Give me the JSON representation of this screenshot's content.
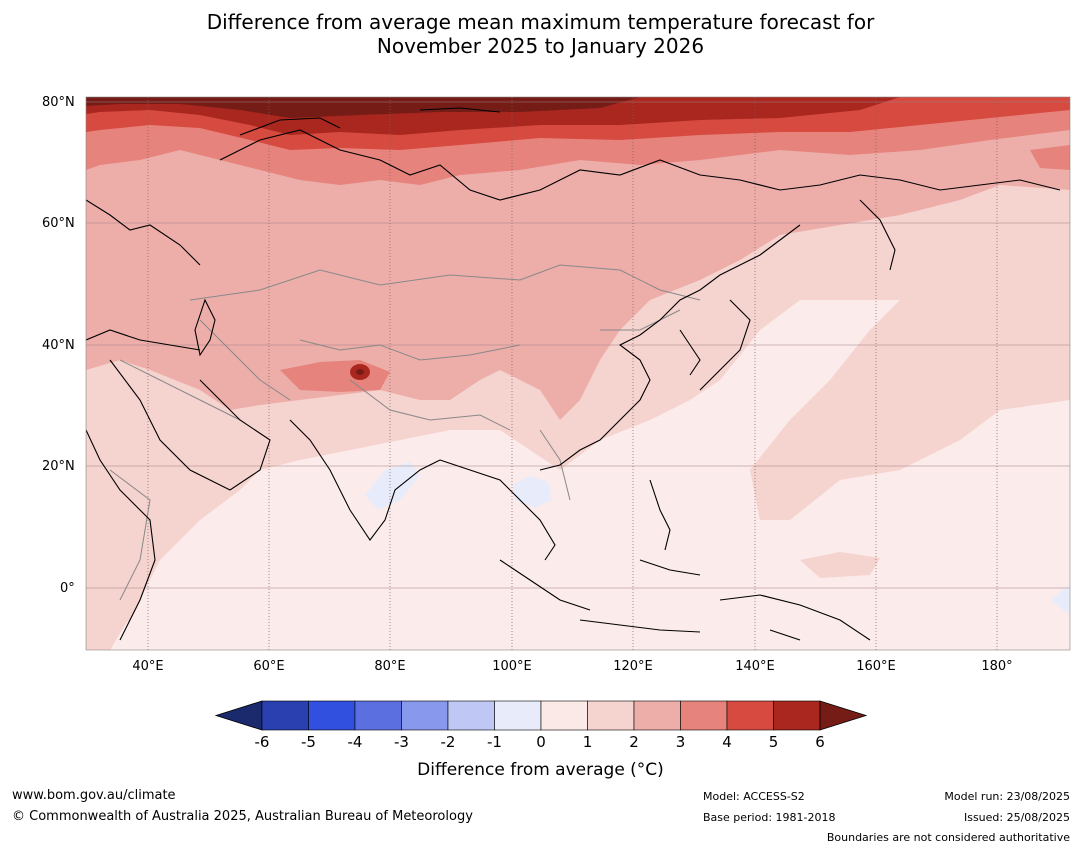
{
  "title": {
    "line1": "Difference from average mean maximum temperature forecast for",
    "line2": "November 2025 to January 2026"
  },
  "map": {
    "lat_labels": [
      "80°N",
      "60°N",
      "40°N",
      "20°N",
      "0°"
    ],
    "lon_labels": [
      "40°E",
      "60°E",
      "80°E",
      "100°E",
      "120°E",
      "140°E",
      "160°E",
      "180°"
    ],
    "ocean_color": "#fbebea",
    "coast_color": "#000000",
    "border_color": "#888888"
  },
  "colorbar": {
    "ticks": [
      "-6",
      "-5",
      "-4",
      "-3",
      "-2",
      "-1",
      "0",
      "1",
      "2",
      "3",
      "4",
      "5",
      "6"
    ],
    "colors": [
      "#1a2a6c",
      "#2a3fb0",
      "#3150e0",
      "#5b6fe0",
      "#8898ec",
      "#bfc8f4",
      "#e8ecfa",
      "#fbe9e7",
      "#f5d3cf",
      "#edaeaa",
      "#e6837c",
      "#d64a3f",
      "#a9271f",
      "#761c17"
    ],
    "label": "Difference from average (°C)"
  },
  "footer": {
    "website": "www.bom.gov.au/climate",
    "copyright": "© Commonwealth of Australia 2025, Australian Bureau of Meteorology",
    "model": "Model: ACCESS-S2",
    "base_period": "Base period: 1981-2018",
    "model_run": "Model run: 23/08/2025",
    "issued": "Issued: 25/08/2025",
    "disclaimer": "Boundaries are not considered authoritative"
  }
}
